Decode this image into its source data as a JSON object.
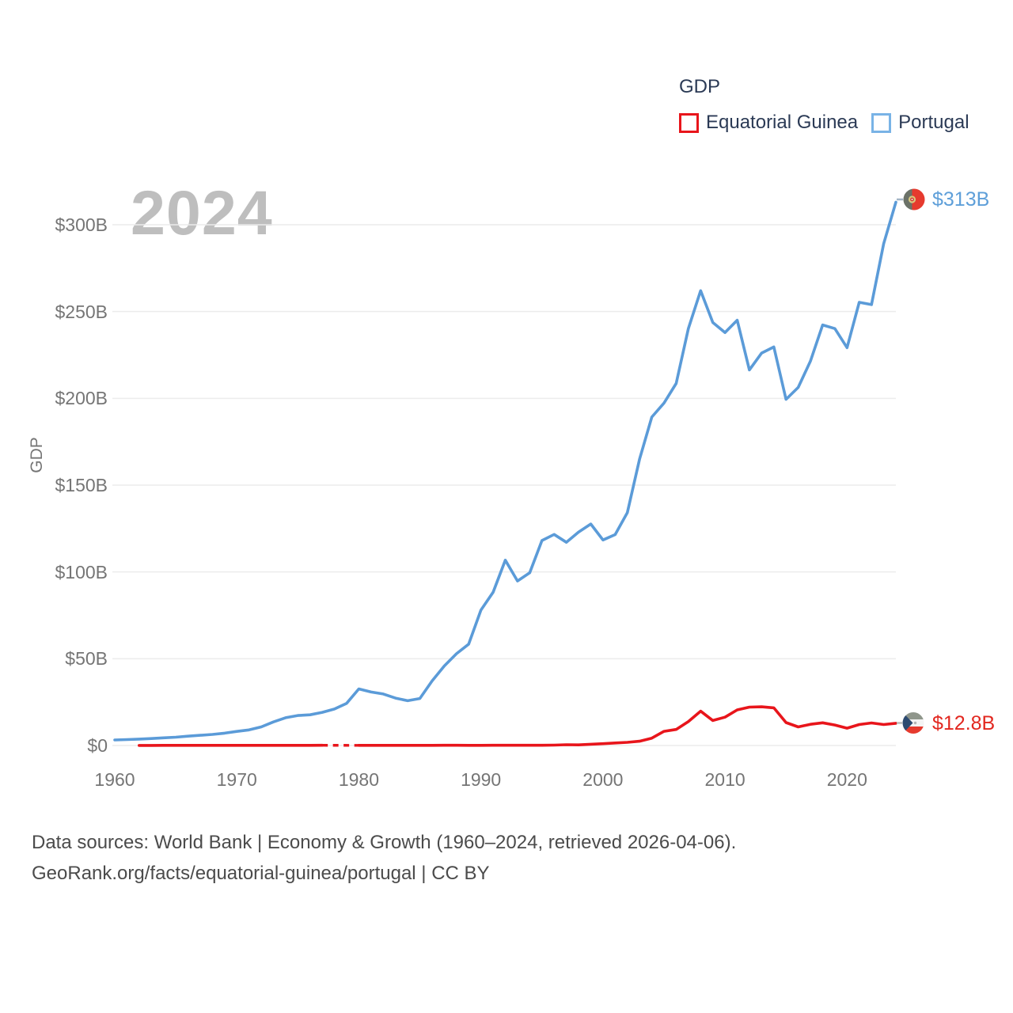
{
  "watermark": {
    "text": "2024",
    "color": "#bebebe"
  },
  "legend": {
    "title": "GDP",
    "items": [
      {
        "label": "Equatorial Guinea",
        "color": "#e8151b"
      },
      {
        "label": "Portugal",
        "color": "#79b3e6"
      }
    ]
  },
  "y_axis": {
    "title": "GDP"
  },
  "end_labels": {
    "portugal": {
      "text": "$313B",
      "color": "#5e9fd9"
    },
    "equatorial_guinea": {
      "text": "$12.8B",
      "color": "#e2271f"
    }
  },
  "footer": {
    "line1": "Data sources: World Bank | Economy & Growth (1960–2024, retrieved 2026-04-06).",
    "line2": "GeoRank.org/facts/equatorial-guinea/portugal | CC BY"
  },
  "chart_data": {
    "type": "line",
    "title": "GDP",
    "ylabel": "GDP",
    "unit": "USD billions (current US$)",
    "x_start": 1960,
    "x_end": 2024,
    "ylim": [
      0,
      320
    ],
    "grid": "horizontal",
    "legend_position": "top-right",
    "y_ticks": [
      {
        "value": 0,
        "label": "$0"
      },
      {
        "value": 50,
        "label": "$50B"
      },
      {
        "value": 100,
        "label": "$100B"
      },
      {
        "value": 150,
        "label": "$150B"
      },
      {
        "value": 200,
        "label": "$200B"
      },
      {
        "value": 250,
        "label": "$250B"
      },
      {
        "value": 300,
        "label": "$300B"
      }
    ],
    "x_ticks": [
      1960,
      1970,
      1980,
      1990,
      2000,
      2010,
      2020
    ],
    "series": [
      {
        "name": "Equatorial Guinea",
        "color": "#e8151b",
        "start_year": 1962,
        "end_value_label": "$12.8B",
        "values": [
          0.06,
          0.06,
          0.07,
          0.07,
          0.07,
          0.08,
          0.08,
          0.07,
          0.07,
          0.07,
          0.07,
          0.08,
          0.11,
          0.11,
          0.11,
          0.12,
          null,
          null,
          0.1,
          0.1,
          0.11,
          0.11,
          0.11,
          0.08,
          0.11,
          0.12,
          0.12,
          0.1,
          0.11,
          0.12,
          0.14,
          0.15,
          0.12,
          0.15,
          0.23,
          0.44,
          0.37,
          0.71,
          1.05,
          1.46,
          1.84,
          2.48,
          4.25,
          8.15,
          9.26,
          13.8,
          19.8,
          14.4,
          16.3,
          20.5,
          22.1,
          22.3,
          21.7,
          13.2,
          10.7,
          12.2,
          13.1,
          11.8,
          10.0,
          12.1,
          13.0,
          12.1,
          12.8
        ]
      },
      {
        "name": "Portugal",
        "color": "#5b9bd8",
        "start_year": 1960,
        "end_value_label": "$313B",
        "values": [
          3.2,
          3.4,
          3.7,
          4.0,
          4.4,
          4.8,
          5.4,
          5.9,
          6.4,
          7.1,
          8.1,
          9.0,
          10.7,
          13.6,
          16.0,
          17.3,
          17.7,
          19.1,
          21.0,
          24.3,
          32.6,
          30.8,
          29.7,
          27.3,
          25.8,
          27.1,
          37.2,
          45.8,
          52.9,
          58.4,
          78.0,
          88.3,
          106.8,
          94.8,
          99.5,
          118.1,
          121.6,
          117.1,
          122.9,
          127.6,
          118.4,
          121.5,
          134.2,
          164.9,
          189.2,
          197.3,
          208.6,
          240.2,
          262.0,
          243.7,
          237.9,
          245.0,
          216.4,
          226.1,
          229.6,
          199.4,
          206.3,
          221.4,
          242.3,
          240.2,
          229.2,
          255.3,
          254.0,
          289.1,
          313.0
        ]
      }
    ],
    "gaps": [
      {
        "series": "Equatorial Guinea",
        "from": 1977,
        "to": 1980,
        "style": "dashed"
      }
    ]
  }
}
